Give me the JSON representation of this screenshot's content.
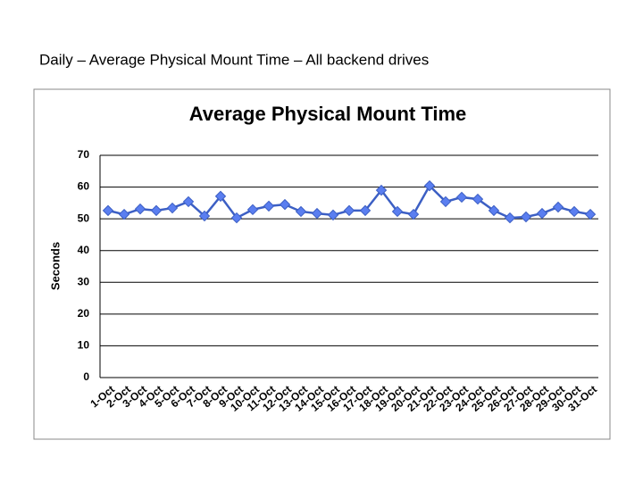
{
  "heading": "Daily – Average Physical Mount Time – All backend drives",
  "chart_data": {
    "type": "line",
    "title": "Average Physical  Mount Time",
    "y_label": "Seconds",
    "categories": [
      "1-Oct",
      "2-Oct",
      "3-Oct",
      "4-Oct",
      "5-Oct",
      "6-Oct",
      "7-Oct",
      "8-Oct",
      "9-Oct",
      "10-Oct",
      "11-Oct",
      "12-Oct",
      "13-Oct",
      "14-Oct",
      "15-Oct",
      "16-Oct",
      "17-Oct",
      "18-Oct",
      "19-Oct",
      "20-Oct",
      "21-Oct",
      "22-Oct",
      "23-Oct",
      "24-Oct",
      "25-Oct",
      "26-Oct",
      "27-Oct",
      "28-Oct",
      "29-Oct",
      "30-Oct",
      "31-Oct"
    ],
    "series": [
      {
        "name": "Average Physical Mount Time",
        "color": "#3c5fc4",
        "values": [
          52.6,
          51.4,
          53.1,
          52.6,
          53.4,
          55.4,
          50.9,
          57.1,
          50.3,
          52.9,
          54.0,
          54.5,
          52.3,
          51.7,
          51.2,
          52.6,
          52.6,
          59.0,
          52.3,
          51.4,
          60.4,
          55.4,
          56.8,
          56.2,
          52.6,
          50.3,
          50.6,
          51.7,
          53.7,
          52.3,
          51.4
        ]
      }
    ],
    "ylim": [
      0,
      70
    ],
    "yticks": [
      0,
      10,
      20,
      30,
      40,
      50,
      60,
      70
    ],
    "grid": true
  }
}
